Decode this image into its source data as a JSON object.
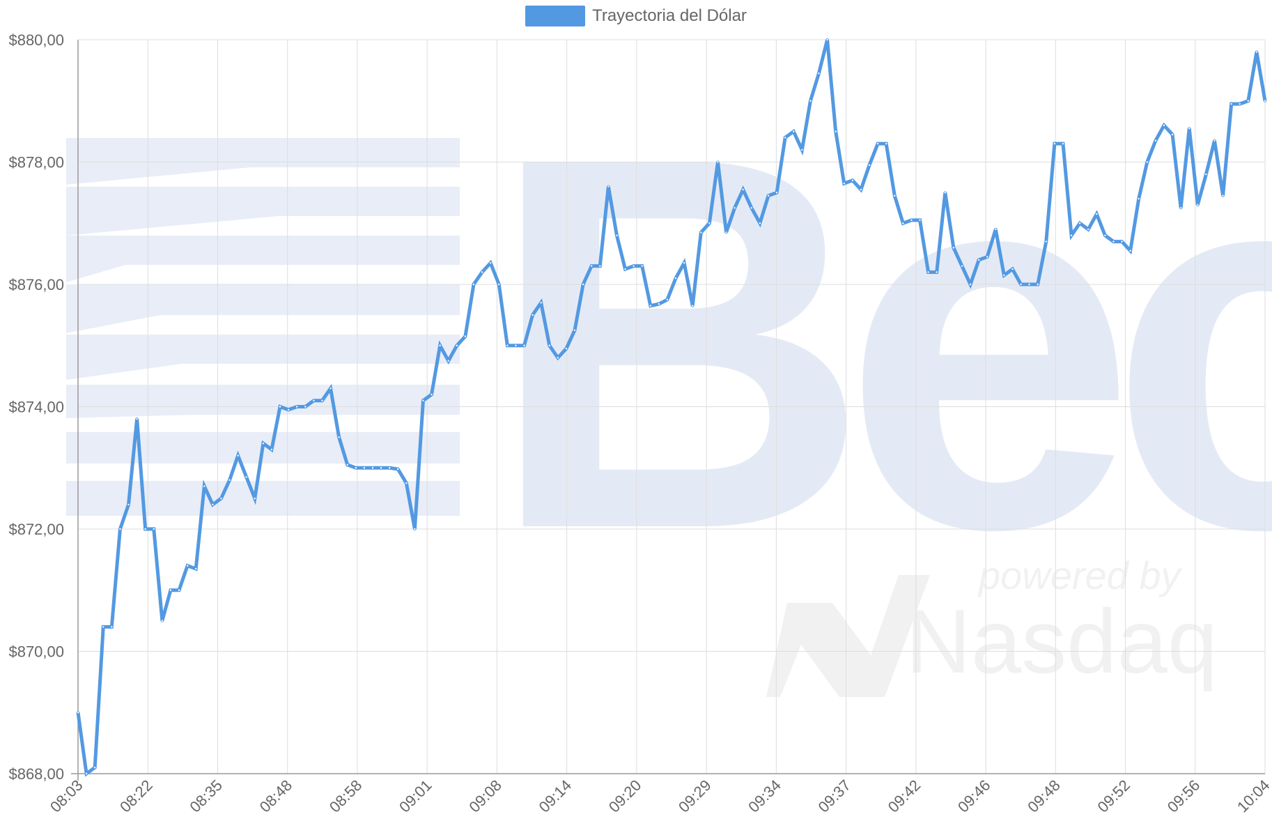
{
  "colors": {
    "line": "#5399e2",
    "grid": "#dddddd",
    "axis": "#999999",
    "tick_text": "#666666",
    "watermark": "#e4eaf5",
    "watermark_light": "#f1f1f1"
  },
  "watermark": {
    "brand": "Bec",
    "powered_by": "powered by",
    "partner": "Nasdaq"
  },
  "chart_data": {
    "type": "line",
    "legend": {
      "position": "top-center",
      "label": "Trayectoria del Dólar"
    },
    "y_ticks": [
      "$868,00",
      "$870,00",
      "$872,00",
      "$874,00",
      "$876,00",
      "$878,00",
      "$880,00"
    ],
    "x_tick_labels": [
      "08:03",
      "08:22",
      "08:35",
      "08:48",
      "08:58",
      "09:01",
      "09:08",
      "09:14",
      "09:20",
      "09:29",
      "09:34",
      "09:37",
      "09:42",
      "09:46",
      "09:48",
      "09:52",
      "09:56",
      "10:04"
    ],
    "ylim": [
      868,
      880
    ],
    "grid": true,
    "series": [
      {
        "name": "Trayectoria del Dólar",
        "values": [
          869.0,
          868.0,
          868.1,
          870.4,
          870.4,
          872.0,
          872.4,
          873.8,
          872.0,
          872.0,
          870.5,
          871.0,
          871.0,
          871.4,
          871.35,
          872.7,
          872.4,
          872.5,
          872.8,
          873.2,
          872.85,
          872.5,
          873.4,
          873.3,
          874.0,
          873.95,
          874.0,
          874.0,
          874.1,
          874.1,
          874.3,
          873.5,
          873.05,
          873.0,
          873.0,
          873.0,
          873.0,
          873.0,
          872.98,
          872.75,
          872.0,
          874.1,
          874.2,
          875.0,
          874.75,
          875.0,
          875.15,
          876.0,
          876.2,
          876.35,
          876.0,
          875.0,
          875.0,
          875.0,
          875.5,
          875.7,
          875.0,
          874.8,
          874.95,
          875.25,
          876.0,
          876.3,
          876.3,
          877.6,
          876.8,
          876.25,
          876.3,
          876.3,
          875.65,
          875.68,
          875.75,
          876.1,
          876.35,
          875.65,
          876.85,
          877.0,
          878.0,
          876.85,
          877.25,
          877.55,
          877.25,
          877.0,
          877.45,
          877.5,
          878.4,
          878.5,
          878.2,
          879.0,
          879.45,
          880.0,
          878.5,
          877.65,
          877.7,
          877.55,
          877.95,
          878.3,
          878.3,
          877.45,
          877.0,
          877.05,
          877.05,
          876.2,
          876.2,
          877.5,
          876.6,
          876.3,
          876.0,
          876.4,
          876.45,
          876.9,
          876.15,
          876.25,
          876.0,
          876.0,
          876.0,
          876.7,
          878.3,
          878.3,
          876.8,
          877.0,
          876.9,
          877.15,
          876.8,
          876.7,
          876.7,
          876.55,
          877.4,
          878.0,
          878.35,
          878.6,
          878.45,
          877.25,
          878.55,
          877.3,
          877.8,
          878.35,
          877.45,
          878.95,
          878.95,
          879.0,
          879.8,
          879.0
        ]
      }
    ]
  }
}
